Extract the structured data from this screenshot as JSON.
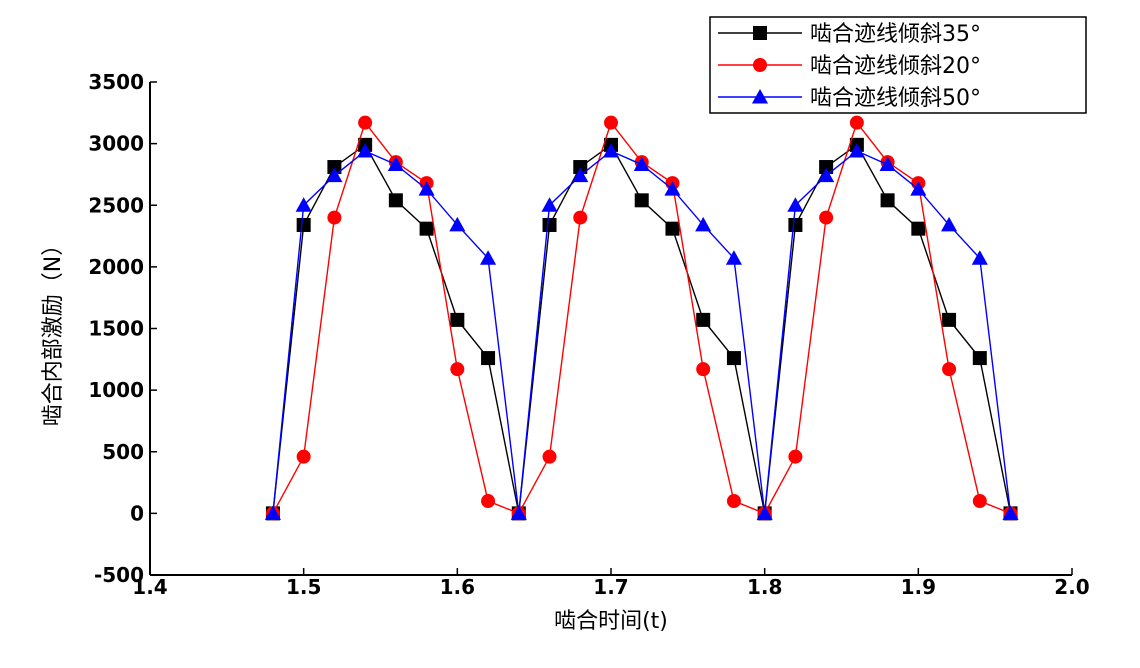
{
  "chart_data": {
    "type": "line",
    "title": "",
    "xlabel": "啮合时间(t)",
    "ylabel": "啮合内部激励（N）",
    "xlim": [
      1.4,
      2.0
    ],
    "ylim": [
      -500,
      3500
    ],
    "xticks": [
      1.4,
      1.5,
      1.6,
      1.7,
      1.8,
      1.9,
      2.0
    ],
    "xtick_labels": [
      "1.4",
      "1.5",
      "1.6",
      "1.7",
      "1.8",
      "1.9",
      "2.0"
    ],
    "yticks": [
      -500,
      0,
      500,
      1000,
      1500,
      2000,
      2500,
      3000,
      3500
    ],
    "ytick_labels": [
      "-500",
      "0",
      "500",
      "1000",
      "1500",
      "2000",
      "2500",
      "3000",
      "3500"
    ],
    "grid": false,
    "legend_position": "top-right",
    "series": [
      {
        "name": "啮合迹线倾斜35°",
        "color": "#000000",
        "marker": "square",
        "x": [
          1.48,
          1.5,
          1.52,
          1.54,
          1.56,
          1.58,
          1.6,
          1.62,
          1.64,
          1.66,
          1.68,
          1.7,
          1.72,
          1.74,
          1.76,
          1.78,
          1.8,
          1.82,
          1.84,
          1.86,
          1.88,
          1.9,
          1.92,
          1.94,
          1.96
        ],
        "y": [
          0,
          2340,
          2810,
          2990,
          2540,
          2310,
          1570,
          1260,
          0,
          2340,
          2810,
          2990,
          2540,
          2310,
          1570,
          1260,
          0,
          2340,
          2810,
          2990,
          2540,
          2310,
          1570,
          1260,
          0
        ]
      },
      {
        "name": "啮合迹线倾斜20°",
        "color": "#ff0000",
        "marker": "circle",
        "x": [
          1.48,
          1.5,
          1.52,
          1.54,
          1.56,
          1.58,
          1.6,
          1.62,
          1.64,
          1.66,
          1.68,
          1.7,
          1.72,
          1.74,
          1.76,
          1.78,
          1.8,
          1.82,
          1.84,
          1.86,
          1.88,
          1.9,
          1.92,
          1.94,
          1.96
        ],
        "y": [
          0,
          460,
          2400,
          3170,
          2850,
          2680,
          1170,
          100,
          0,
          460,
          2400,
          3170,
          2850,
          2680,
          1170,
          100,
          0,
          460,
          2400,
          3170,
          2850,
          2680,
          1170,
          100,
          0
        ]
      },
      {
        "name": "啮合迹线倾斜50°",
        "color": "#0000ff",
        "marker": "triangle",
        "x": [
          1.48,
          1.5,
          1.52,
          1.54,
          1.56,
          1.58,
          1.6,
          1.62,
          1.64,
          1.66,
          1.68,
          1.7,
          1.72,
          1.74,
          1.76,
          1.78,
          1.8,
          1.82,
          1.84,
          1.86,
          1.88,
          1.9,
          1.92,
          1.94,
          1.96
        ],
        "y": [
          0,
          2500,
          2740,
          2940,
          2830,
          2630,
          2340,
          2070,
          0,
          2500,
          2740,
          2940,
          2830,
          2630,
          2340,
          2070,
          0,
          2500,
          2740,
          2940,
          2830,
          2630,
          2340,
          2070,
          0
        ]
      }
    ]
  }
}
